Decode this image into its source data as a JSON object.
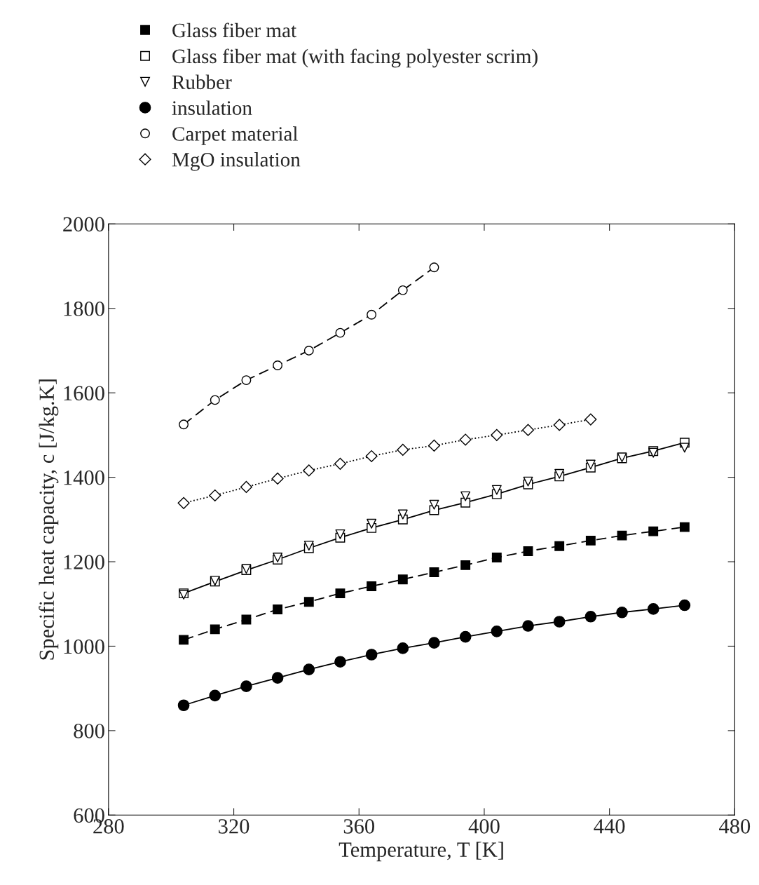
{
  "chart_data": {
    "type": "line",
    "xlabel": "Temperature, T [K]",
    "ylabel": "Specific heat capacity, c [J/kg.K]",
    "xlim": [
      280,
      480
    ],
    "xticks": [
      280,
      320,
      360,
      400,
      440,
      480
    ],
    "ylim": [
      600,
      2000
    ],
    "yticks": [
      600,
      800,
      1000,
      1200,
      1400,
      1600,
      1800,
      2000
    ],
    "grid": false,
    "legend": "top left",
    "series": [
      {
        "name": "Glass fiber mat",
        "color": "#000000",
        "marker": "square",
        "line_style": "dashed",
        "x": [
          304,
          314,
          324,
          334,
          344,
          354,
          364,
          374,
          384,
          394,
          404,
          414,
          424,
          434,
          444,
          454,
          464
        ],
        "values": [
          1015,
          1040,
          1063,
          1087,
          1105,
          1125,
          1142,
          1158,
          1175,
          1192,
          1210,
          1225,
          1237,
          1250,
          1262,
          1272,
          1282
        ]
      },
      {
        "name": "Glass fiber mat (with facing polyester scrim)",
        "color": "#ffffff",
        "marker": "square",
        "line_style": "solid",
        "x": [
          304,
          314,
          324,
          334,
          344,
          354,
          364,
          374,
          384,
          394,
          404,
          414,
          424,
          434,
          444,
          454,
          464
        ],
        "values": [
          1125,
          1153,
          1180,
          1205,
          1232,
          1257,
          1280,
          1300,
          1322,
          1340,
          1360,
          1383,
          1402,
          1423,
          1445,
          1462,
          1482
        ]
      },
      {
        "name": "Rubber",
        "type": "scatter",
        "color": "#ffffff",
        "marker": "triangle",
        "x": [
          304,
          314,
          324,
          334,
          344,
          354,
          364,
          374,
          384,
          394,
          404,
          414,
          424,
          434,
          444,
          454,
          464
        ],
        "values": [
          1122,
          1155,
          1183,
          1210,
          1238,
          1265,
          1290,
          1312,
          1335,
          1355,
          1370,
          1390,
          1408,
          1430,
          1447,
          1458,
          1470
        ]
      },
      {
        "name": "insulation",
        "color": "#000000",
        "marker": "circle",
        "line_style": "solid",
        "x": [
          304,
          314,
          324,
          334,
          344,
          354,
          364,
          374,
          384,
          394,
          404,
          414,
          424,
          434,
          444,
          454,
          464
        ],
        "values": [
          860,
          883,
          905,
          925,
          945,
          963,
          980,
          995,
          1008,
          1022,
          1035,
          1048,
          1058,
          1070,
          1080,
          1088,
          1097
        ]
      },
      {
        "name": "Carpet material",
        "color": "#ffffff",
        "marker": "circle",
        "line_style": "dashed",
        "x": [
          304,
          314,
          324,
          334,
          344,
          354,
          364,
          374,
          384
        ],
        "values": [
          1525,
          1583,
          1630,
          1665,
          1700,
          1742,
          1785,
          1843,
          1897
        ]
      },
      {
        "name": "MgO insulation",
        "color": "#ffffff",
        "marker": "diamond",
        "line_style": "dotted",
        "x": [
          304,
          314,
          324,
          334,
          344,
          354,
          364,
          374,
          384,
          394,
          404,
          414,
          424,
          434
        ],
        "values": [
          1339,
          1357,
          1377,
          1397,
          1416,
          1432,
          1450,
          1465,
          1475,
          1489,
          1500,
          1512,
          1524,
          1537
        ]
      }
    ]
  }
}
